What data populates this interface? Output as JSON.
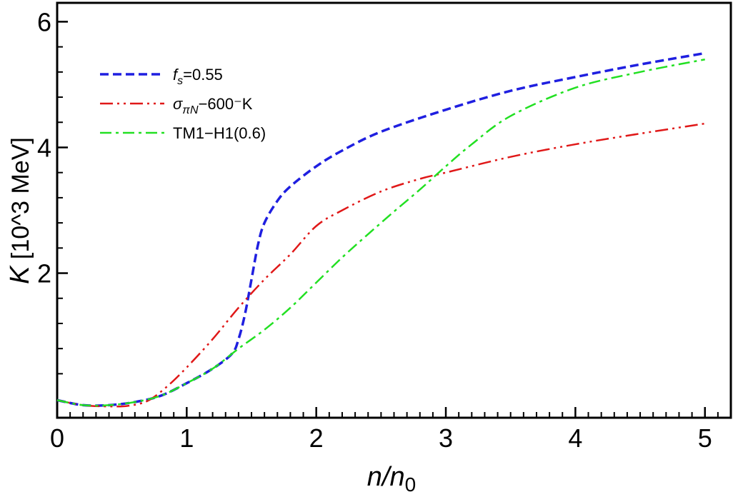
{
  "chart_data": {
    "type": "line",
    "title": "",
    "xlabel": {
      "base": "n/n",
      "sub": "0"
    },
    "ylabel": {
      "symbol": "K",
      "unit": " [10^3 MeV]"
    },
    "xlim": [
      0,
      5.2
    ],
    "ylim": [
      -0.3,
      6.3
    ],
    "x_ticks": [
      0,
      1,
      2,
      3,
      4,
      5
    ],
    "y_ticks": [
      2,
      4,
      6
    ],
    "x_minor_step": 0.1,
    "y_minor_step": 0.4,
    "grid": false,
    "legend_position": "top-left",
    "series": [
      {
        "name": "f_s=0.55",
        "legend": {
          "main": "f",
          "sub": "s",
          "rest": "=0.55"
        },
        "color": "#1f1fe0",
        "dash": "short-dash",
        "x": [
          0,
          0.2,
          0.4,
          0.6,
          0.8,
          1.0,
          1.2,
          1.35,
          1.4,
          1.45,
          1.5,
          1.55,
          1.6,
          1.7,
          1.8,
          2.0,
          2.2,
          2.5,
          3.0,
          3.5,
          4.0,
          4.5,
          5.0
        ],
        "y": [
          -0.02,
          -0.1,
          -0.1,
          -0.05,
          0.05,
          0.25,
          0.48,
          0.72,
          0.95,
          1.35,
          1.9,
          2.45,
          2.8,
          3.15,
          3.38,
          3.7,
          3.95,
          4.25,
          4.6,
          4.9,
          5.12,
          5.32,
          5.5
        ]
      },
      {
        "name": "sigma_piN-600-K",
        "legend": {
          "main": "σ",
          "sub": "πN",
          "rest": "−600⁻K"
        },
        "color": "#e01818",
        "dash": "dash-dot-dot",
        "x": [
          0,
          0.2,
          0.4,
          0.55,
          0.7,
          0.85,
          1.0,
          1.2,
          1.4,
          1.6,
          1.8,
          2.0,
          2.2,
          2.5,
          2.8,
          3.0,
          3.5,
          4.0,
          4.5,
          5.0
        ],
        "y": [
          -0.02,
          -0.1,
          -0.12,
          -0.11,
          -0.03,
          0.2,
          0.5,
          0.95,
          1.45,
          1.9,
          2.3,
          2.75,
          3.0,
          3.3,
          3.5,
          3.6,
          3.85,
          4.05,
          4.22,
          4.38
        ]
      },
      {
        "name": "TM1-H1(0.6)",
        "legend": {
          "main": "TM1−H1(0.6)",
          "sub": "",
          "rest": ""
        },
        "color": "#22e022",
        "dash": "dash-dot",
        "x": [
          0,
          0.2,
          0.4,
          0.6,
          0.8,
          1.0,
          1.2,
          1.4,
          1.6,
          1.8,
          2.0,
          2.2,
          2.4,
          2.6,
          2.8,
          3.0,
          3.2,
          3.5,
          4.0,
          4.5,
          5.0
        ],
        "y": [
          -0.02,
          -0.1,
          -0.1,
          -0.05,
          0.05,
          0.25,
          0.48,
          0.8,
          1.1,
          1.45,
          1.85,
          2.25,
          2.62,
          2.98,
          3.33,
          3.7,
          4.05,
          4.5,
          4.95,
          5.2,
          5.4
        ]
      }
    ]
  }
}
